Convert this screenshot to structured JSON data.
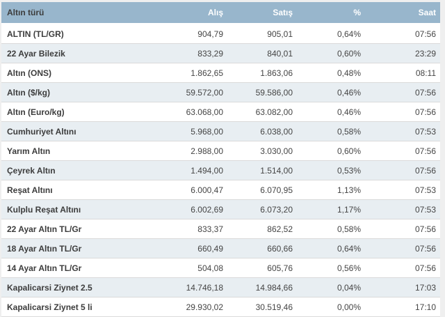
{
  "table": {
    "columns": [
      {
        "key": "type",
        "label": "Altın türü",
        "align": "left"
      },
      {
        "key": "buy",
        "label": "Alış",
        "align": "right"
      },
      {
        "key": "sell",
        "label": "Satış",
        "align": "right"
      },
      {
        "key": "pct",
        "label": "%",
        "align": "right"
      },
      {
        "key": "time",
        "label": "Saat",
        "align": "right"
      }
    ],
    "rows": [
      [
        "ALTIN (TL/GR)",
        "904,79",
        "905,01",
        "0,64%",
        "07:56"
      ],
      [
        "22 Ayar Bilezik",
        "833,29",
        "840,01",
        "0,60%",
        "23:29"
      ],
      [
        "Altın (ONS)",
        "1.862,65",
        "1.863,06",
        "0,48%",
        "08:11"
      ],
      [
        "Altın ($/kg)",
        "59.572,00",
        "59.586,00",
        "0,46%",
        "07:56"
      ],
      [
        "Altın (Euro/kg)",
        "63.068,00",
        "63.082,00",
        "0,46%",
        "07:56"
      ],
      [
        "Cumhuriyet Altını",
        "5.968,00",
        "6.038,00",
        "0,58%",
        "07:53"
      ],
      [
        "Yarım Altın",
        "2.988,00",
        "3.030,00",
        "0,60%",
        "07:56"
      ],
      [
        "Çeyrek Altın",
        "1.494,00",
        "1.514,00",
        "0,53%",
        "07:56"
      ],
      [
        "Reşat Altını",
        "6.000,47",
        "6.070,95",
        "1,13%",
        "07:53"
      ],
      [
        "Kulplu Reşat Altını",
        "6.002,69",
        "6.073,20",
        "1,17%",
        "07:53"
      ],
      [
        "22 Ayar Altın TL/Gr",
        "833,37",
        "862,52",
        "0,58%",
        "07:56"
      ],
      [
        "18 Ayar Altın TL/Gr",
        "660,49",
        "660,66",
        "0,64%",
        "07:56"
      ],
      [
        "14 Ayar Altın TL/Gr",
        "504,08",
        "605,76",
        "0,56%",
        "07:56"
      ],
      [
        "Kapalicarsi Ziynet 2.5",
        "14.746,18",
        "14.984,66",
        "0,04%",
        "17:03"
      ],
      [
        "Kapalicarsi Ziynet 5 li",
        "29.930,02",
        "30.519,46",
        "0,00%",
        "17:10"
      ]
    ]
  },
  "colors": {
    "header_bg": "#98b6cc",
    "header_text": "#ffffff",
    "stripe_bg": "#e8eef2",
    "row_bg": "#ffffff",
    "label_text": "#3c3c3c",
    "value_text": "#444444",
    "row_border": "#dadada",
    "page_bg": "#efefef"
  }
}
